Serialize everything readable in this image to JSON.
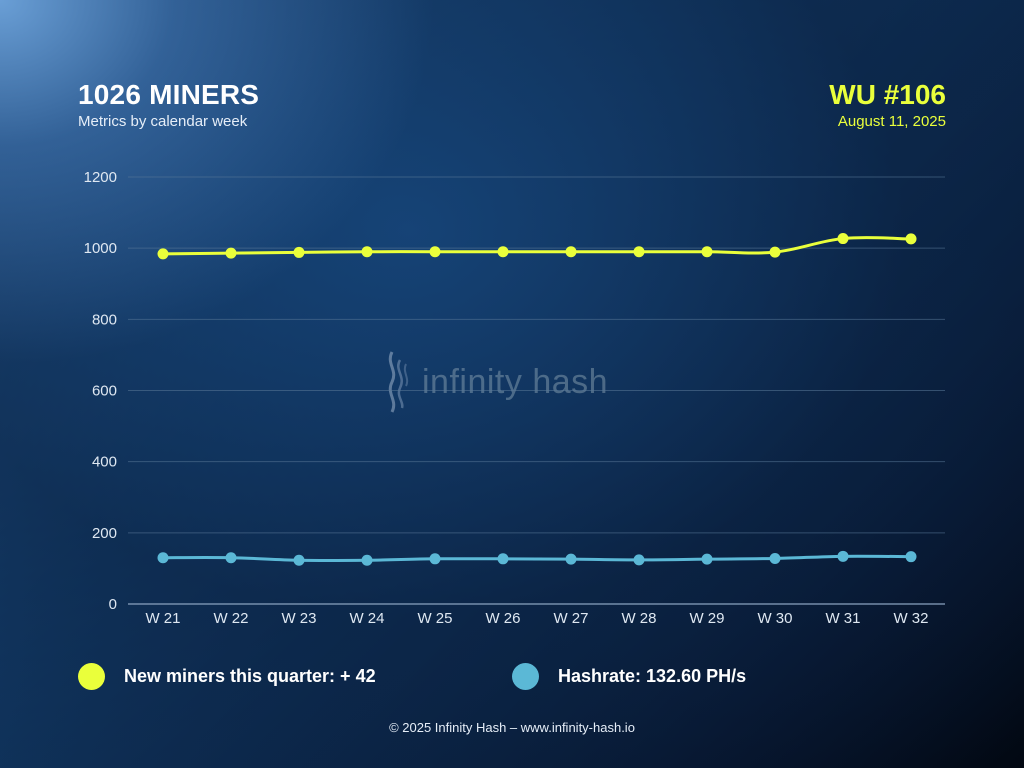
{
  "header": {
    "title": "1026 MINERS",
    "subtitle": "Metrics by calendar week",
    "wu": "WU #106",
    "date": "August 11, 2025"
  },
  "watermark": {
    "text": "infinity hash"
  },
  "colors": {
    "miners": "#eaff3b",
    "hashrate": "#5bb8d6",
    "grid": "#5a7898",
    "axis": "#dfe8f2"
  },
  "chart_data": {
    "type": "line",
    "categories": [
      "W 21",
      "W 22",
      "W 23",
      "W 24",
      "W 25",
      "W 26",
      "W 27",
      "W 28",
      "W 29",
      "W 30",
      "W 31",
      "W 32"
    ],
    "ylim": [
      0,
      1200
    ],
    "yticks": [
      0,
      200,
      400,
      600,
      800,
      1000,
      1200
    ],
    "grid": true,
    "series": [
      {
        "key": "miners",
        "values": [
          984,
          986,
          988,
          990,
          990,
          990,
          990,
          990,
          990,
          989,
          1027,
          1026
        ]
      },
      {
        "key": "hashrate",
        "values": [
          130,
          130,
          123,
          123,
          127,
          127,
          126,
          124,
          126,
          128,
          134,
          133
        ]
      }
    ]
  },
  "legend": {
    "miners_label": "New miners this quarter: + 42",
    "hashrate_label": "Hashrate: 132.60 PH/s"
  },
  "footer": {
    "text": "© 2025 Infinity Hash – www.infinity-hash.io"
  }
}
